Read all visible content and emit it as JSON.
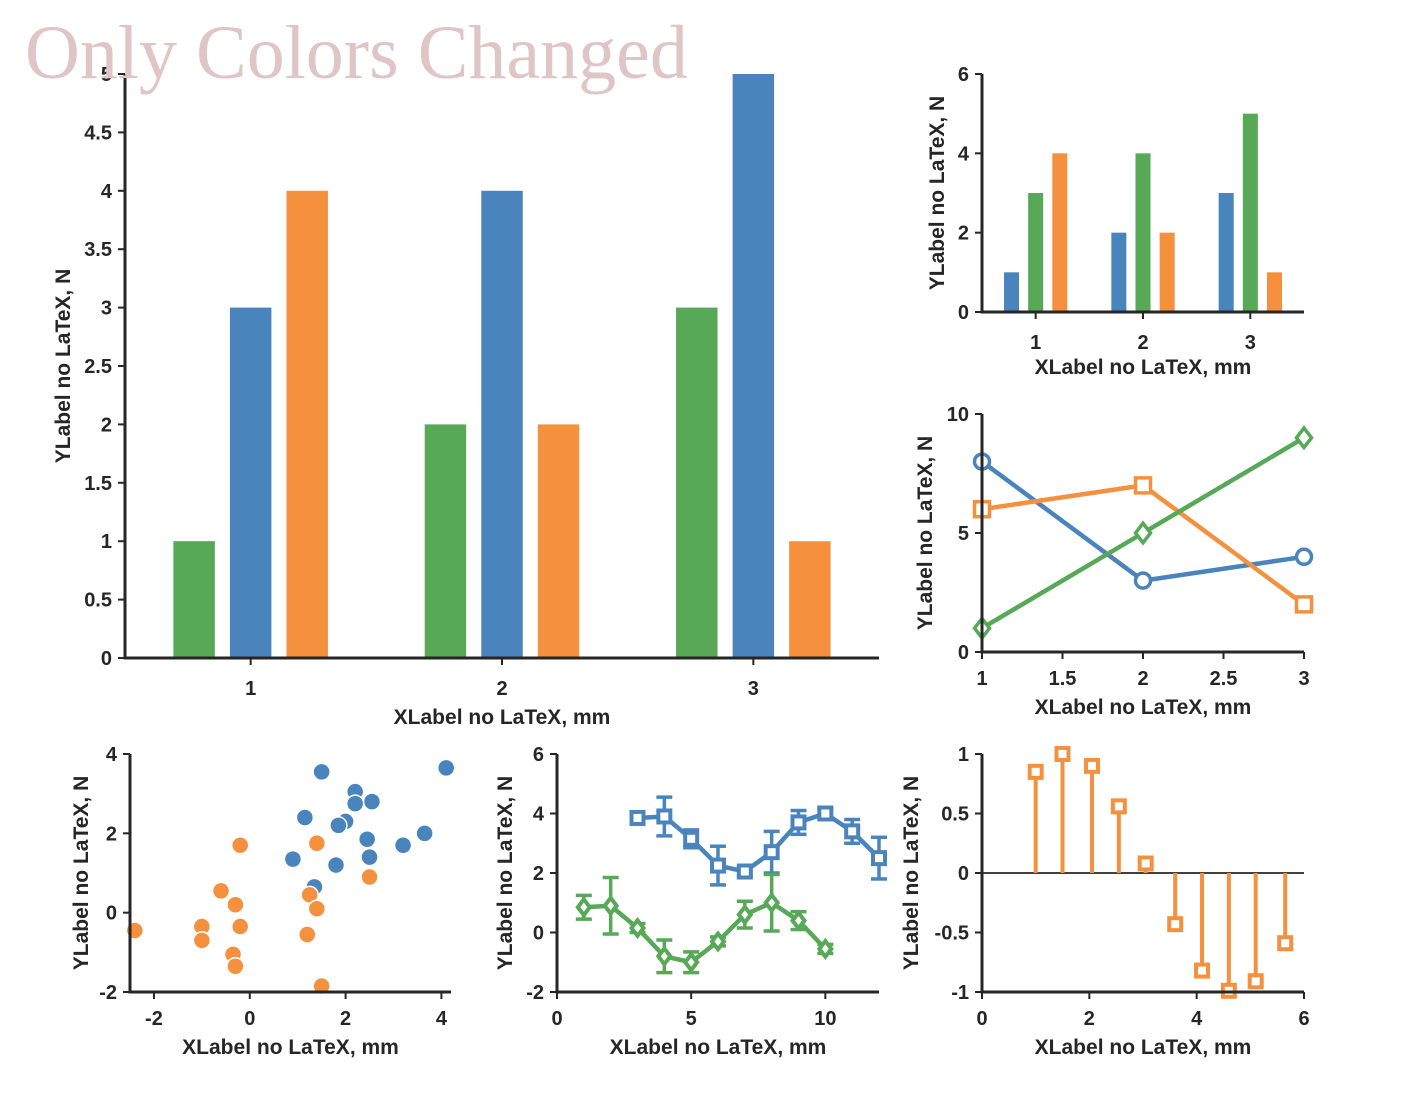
{
  "title": "Only Colors Changed",
  "colors": {
    "blue": "#4a84bd",
    "green": "#57a857",
    "orange": "#f5913e",
    "title": "#dfc5c5"
  },
  "chart_data": [
    {
      "type": "bar",
      "xlabel": "XLabel no LaTeX, mm",
      "ylabel": "YLabel no LaTeX, N",
      "categories": [
        "1",
        "2",
        "3"
      ],
      "ylim": [
        0,
        5
      ],
      "yticks": [
        "0",
        "0.5",
        "1",
        "1.5",
        "2",
        "2.5",
        "3",
        "3.5",
        "4",
        "4.5",
        "5"
      ],
      "series": [
        {
          "values": [
            1,
            2,
            3
          ],
          "color": "green"
        },
        {
          "values": [
            3,
            4,
            5
          ],
          "color": "blue"
        },
        {
          "values": [
            4,
            2,
            1
          ],
          "color": "orange"
        }
      ]
    },
    {
      "type": "bar",
      "xlabel": "XLabel no LaTeX, mm",
      "ylabel": "YLabel no LaTeX, N",
      "categories": [
        "1",
        "2",
        "3"
      ],
      "ylim": [
        0,
        6
      ],
      "yticks": [
        "0",
        "2",
        "4",
        "6"
      ],
      "series": [
        {
          "values": [
            1,
            2,
            3
          ],
          "color": "blue"
        },
        {
          "values": [
            3,
            4,
            5
          ],
          "color": "green"
        },
        {
          "values": [
            4,
            2,
            1
          ],
          "color": "orange"
        }
      ]
    },
    {
      "type": "line",
      "xlabel": "XLabel no LaTeX, mm",
      "ylabel": "YLabel no LaTeX, N",
      "xlim": [
        1,
        3
      ],
      "ylim": [
        0,
        10
      ],
      "xticks": [
        "1",
        "1.5",
        "2",
        "2.5",
        "3"
      ],
      "yticks": [
        "0",
        "5",
        "10"
      ],
      "x": [
        1,
        2,
        3
      ],
      "series": [
        {
          "values": [
            8,
            3,
            4
          ],
          "color": "blue",
          "marker": "circle"
        },
        {
          "values": [
            6,
            7,
            2
          ],
          "color": "orange",
          "marker": "square"
        },
        {
          "values": [
            1,
            5,
            9
          ],
          "color": "green",
          "marker": "diamond"
        }
      ]
    },
    {
      "type": "scatter",
      "xlabel": "XLabel no LaTeX, mm",
      "ylabel": "YLabel no LaTeX, N",
      "xlim": [
        -2.5,
        4.2
      ],
      "ylim": [
        -2,
        4
      ],
      "xticks": [
        "-2",
        "0",
        "2",
        "4"
      ],
      "yticks": [
        "-2",
        "0",
        "2",
        "4"
      ],
      "series": [
        {
          "color": "blue",
          "points": [
            [
              1.5,
              3.55
            ],
            [
              4.1,
              3.65
            ],
            [
              2.2,
              3.05
            ],
            [
              2.55,
              2.8
            ],
            [
              2.2,
              2.75
            ],
            [
              1.15,
              2.4
            ],
            [
              2.0,
              2.3
            ],
            [
              1.85,
              2.2
            ],
            [
              2.45,
              1.85
            ],
            [
              3.65,
              2.0
            ],
            [
              3.2,
              1.7
            ],
            [
              0.9,
              1.35
            ],
            [
              2.5,
              1.4
            ],
            [
              1.8,
              1.2
            ],
            [
              1.35,
              0.65
            ]
          ]
        },
        {
          "color": "orange",
          "points": [
            [
              -0.2,
              1.7
            ],
            [
              1.4,
              1.75
            ],
            [
              2.5,
              0.9
            ],
            [
              -0.6,
              0.55
            ],
            [
              1.25,
              0.45
            ],
            [
              -0.3,
              0.2
            ],
            [
              1.4,
              0.1
            ],
            [
              -1.0,
              -0.35
            ],
            [
              -0.2,
              -0.35
            ],
            [
              -2.4,
              -0.45
            ],
            [
              1.2,
              -0.55
            ],
            [
              -1.0,
              -0.7
            ],
            [
              -0.35,
              -1.05
            ],
            [
              -0.3,
              -1.35
            ],
            [
              1.5,
              -1.85
            ]
          ]
        }
      ]
    },
    {
      "type": "line",
      "xlabel": "XLabel no LaTeX, mm",
      "ylabel": "YLabel no LaTeX, N",
      "xlim": [
        0,
        12
      ],
      "ylim": [
        -2,
        6
      ],
      "xticks": [
        "0",
        "5",
        "10"
      ],
      "yticks": [
        "-2",
        "0",
        "2",
        "4",
        "6"
      ],
      "series": [
        {
          "color": "blue",
          "marker": "square",
          "x": [
            3,
            4,
            5,
            6,
            7,
            8,
            9,
            10,
            11,
            12
          ],
          "values": [
            3.85,
            3.9,
            3.15,
            2.25,
            2.05,
            2.7,
            3.7,
            4.0,
            3.4,
            2.5
          ],
          "err": [
            0.15,
            0.65,
            0.3,
            0.65,
            0.15,
            0.7,
            0.4,
            0.15,
            0.4,
            0.7
          ]
        },
        {
          "color": "green",
          "marker": "diamond",
          "x": [
            1,
            2,
            3,
            4,
            5,
            6,
            7,
            8,
            9,
            10
          ],
          "values": [
            0.85,
            0.9,
            0.15,
            -0.8,
            -1.0,
            -0.3,
            0.6,
            1.0,
            0.4,
            -0.55
          ],
          "err": [
            0.4,
            0.95,
            0.15,
            0.55,
            0.35,
            0.15,
            0.45,
            0.95,
            0.3,
            0.15
          ]
        }
      ]
    },
    {
      "type": "stem",
      "xlabel": "XLabel no LaTeX, mm",
      "ylabel": "YLabel no LaTeX, N",
      "xlim": [
        0,
        6
      ],
      "ylim": [
        -1,
        1
      ],
      "xticks": [
        "0",
        "2",
        "4",
        "6"
      ],
      "yticks": [
        "-1",
        "-0.5",
        "0",
        "0.5",
        "1"
      ],
      "series": [
        {
          "color": "orange",
          "marker": "square",
          "x": [
            1.0,
            1.5,
            2.05,
            2.55,
            3.05,
            3.6,
            4.1,
            4.6,
            5.1,
            5.65
          ],
          "values": [
            0.85,
            1.0,
            0.9,
            0.56,
            0.08,
            -0.43,
            -0.82,
            -0.99,
            -0.91,
            -0.59
          ]
        }
      ]
    }
  ]
}
